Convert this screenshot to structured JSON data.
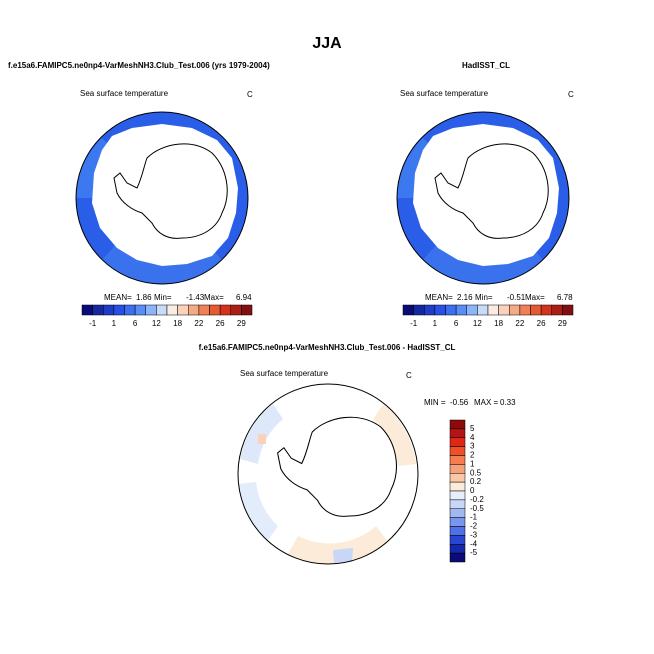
{
  "title": "JJA",
  "panels": [
    {
      "title": "f.e15a6.FAMIPC5.ne0np4-VarMeshNH3.Club_Test.006 (yrs 1979-2004)",
      "subtitle": "Sea surface temperature",
      "units": "C",
      "stats": [
        {
          "label": "MEAN=",
          "value": 1.86
        },
        {
          "label": "Min=",
          "value": -1.43
        },
        {
          "label": "Max=",
          "value": 6.94
        }
      ],
      "colorbar": {
        "labels": [
          -1,
          1,
          6,
          12,
          18,
          22,
          26,
          29
        ],
        "colors": [
          "#0a0a78",
          "#1428a0",
          "#1e3cc8",
          "#2850e6",
          "#3c6ef0",
          "#5a8cf5",
          "#8cb4fa",
          "#c8dcfa",
          "#f8ece4",
          "#fad2b9",
          "#f5aa87",
          "#f08055",
          "#e65a32",
          "#d2321e",
          "#aa1e14",
          "#821010"
        ]
      }
    },
    {
      "title": "HadISST_CL",
      "subtitle": "Sea surface temperature",
      "units": "C",
      "stats": [
        {
          "label": "MEAN=",
          "value": 2.16
        },
        {
          "label": "Min=",
          "value": -0.51
        },
        {
          "label": "Max=",
          "value": 6.78
        }
      ],
      "colorbar": {
        "labels": [
          -1,
          1,
          6,
          12,
          18,
          22,
          26,
          29
        ],
        "colors": [
          "#0a0a78",
          "#1428a0",
          "#1e3cc8",
          "#2850e6",
          "#3c6ef0",
          "#5a8cf5",
          "#8cb4fa",
          "#c8dcfa",
          "#f8ece4",
          "#fad2b9",
          "#f5aa87",
          "#f08055",
          "#e65a32",
          "#d2321e",
          "#aa1e14",
          "#821010"
        ]
      }
    },
    {
      "title": "f.e15a6.FAMIPC5.ne0np4-VarMeshNH3.Club_Test.006 - HadISST_CL",
      "subtitle": "Sea surface temperature",
      "units": "C",
      "stats": [
        {
          "label": "MIN =",
          "value": -0.56
        },
        {
          "label": "MAX =",
          "value": 0.33
        }
      ],
      "colorbar": {
        "labels": [
          5,
          4,
          3,
          2,
          1,
          0.5,
          0.2,
          0,
          -0.2,
          -0.5,
          -1,
          -2,
          -3,
          -4,
          -5
        ],
        "colors": [
          "#8c0a0a",
          "#b41414",
          "#dc2814",
          "#f05028",
          "#f57d50",
          "#f8a078",
          "#fac8a8",
          "#fcebd8",
          "#e6eefa",
          "#c8d7f5",
          "#a0b9f0",
          "#7896eb",
          "#5070e6",
          "#2846d2",
          "#1428aa",
          "#0a0a78"
        ]
      }
    }
  ]
}
